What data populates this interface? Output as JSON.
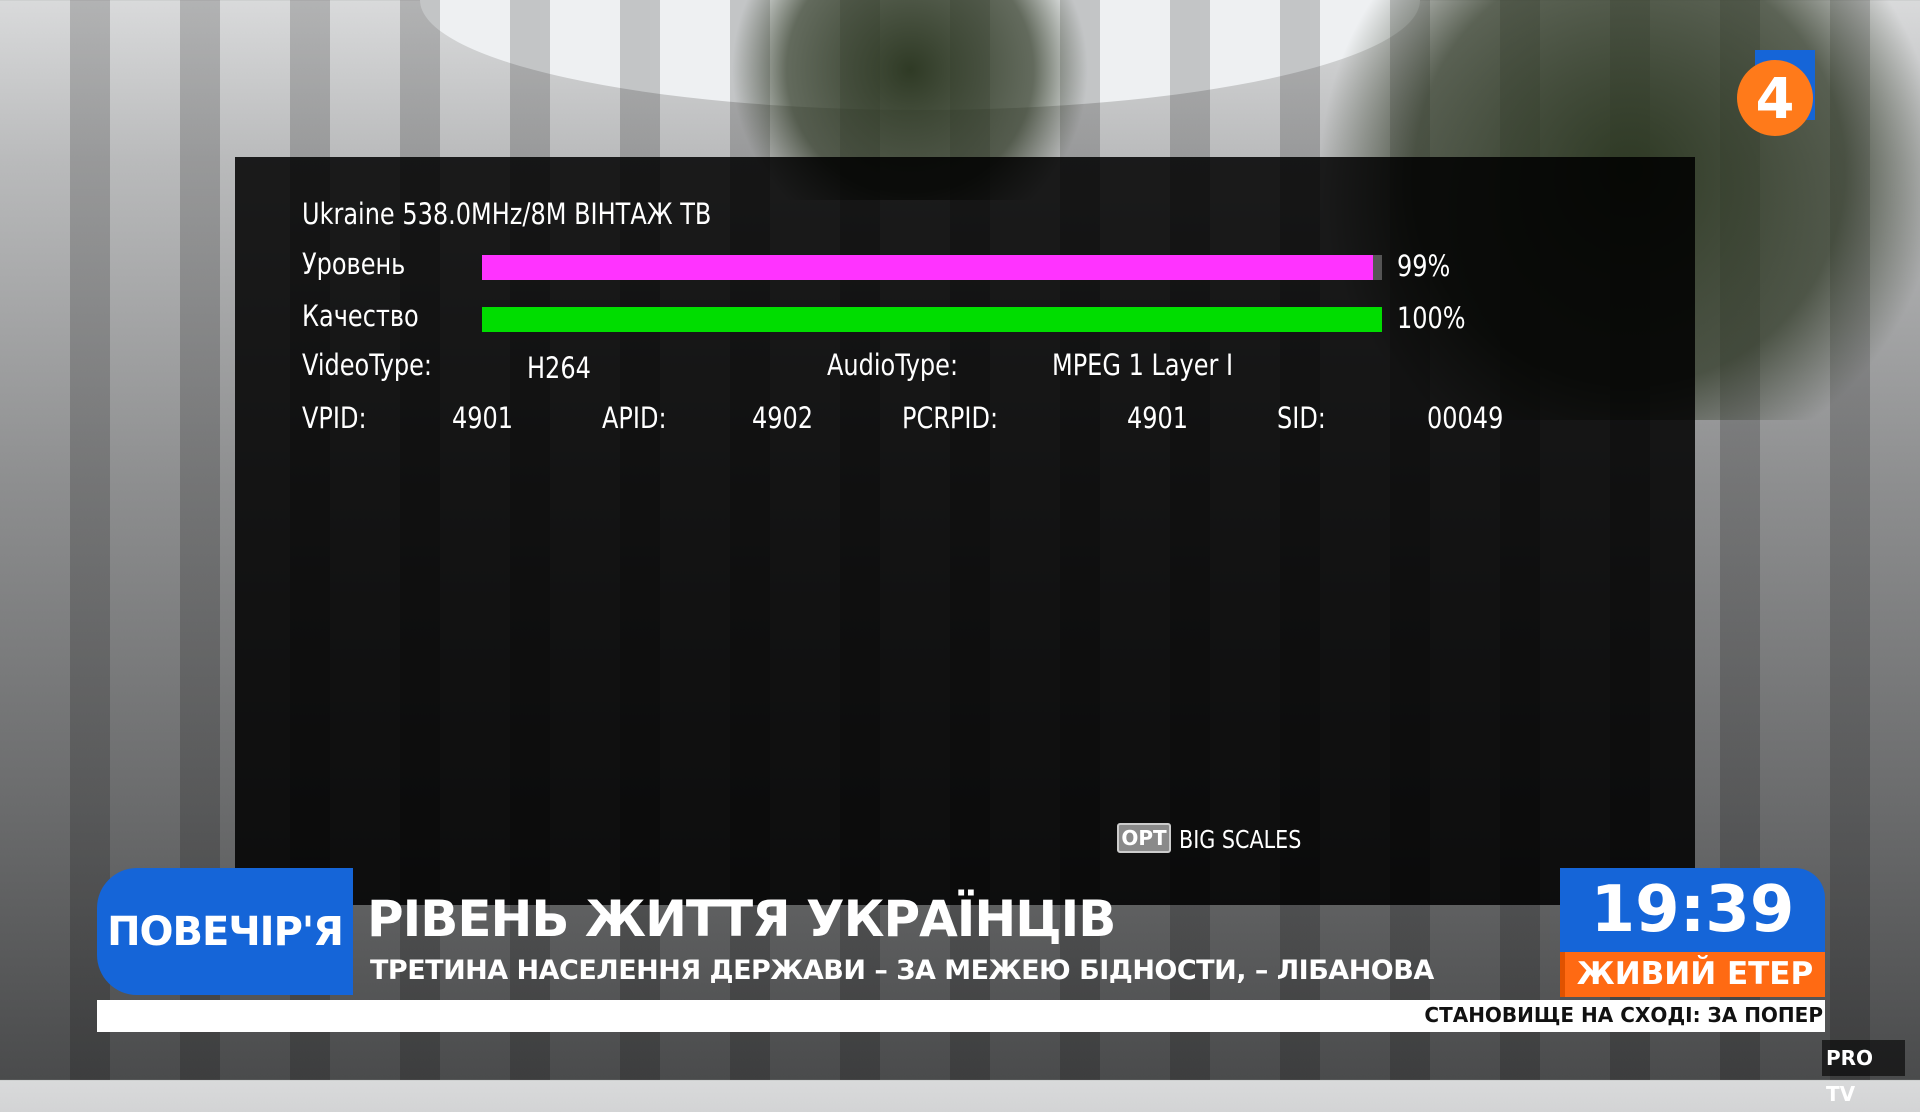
{
  "signal_info": {
    "title": "Ukraine 538.0MHz/8M ВІНТАЖ ТВ",
    "level_label": "Уровень",
    "level_percent": 99,
    "level_text": "99%",
    "quality_label": "Качество",
    "quality_percent": 100,
    "quality_text": "100%",
    "level_color": "#ff33ff",
    "quality_color": "#00dd00",
    "video_type_label": "VideoType:",
    "video_type": "H264",
    "audio_type_label": "AudioType:",
    "audio_type": "MPEG 1 Layer I",
    "vpid_label": "VPID:",
    "vpid": "4901",
    "apid_label": "APID:",
    "apid": "4902",
    "pcrpid_label": "PCRPID:",
    "pcrpid": "4901",
    "sid_label": "SID:",
    "sid": "00049",
    "opt_key": "OPT",
    "opt_label": "BIG SCALES"
  },
  "broadcast": {
    "show_name": "ПОВЕЧІР'Я",
    "headline": "РІВЕНЬ ЖИТТЯ УКРАЇНЦІВ",
    "subheadline": "ТРЕТИНА НАСЕЛЕННЯ ДЕРЖАВИ – ЗА МЕЖЕЮ БІДНОСТИ, – ЛІБАНОВА",
    "ticker": "СТАНОВИЩЕ НА СХОДІ: ЗА ПОПЕР",
    "time": "19:39",
    "live_label": "ЖИВИЙ ЕТЕР",
    "channel_logo": "4",
    "watermark": "PRO TV",
    "accent_blue": "#1565d8",
    "accent_orange": "#ff6a13"
  }
}
